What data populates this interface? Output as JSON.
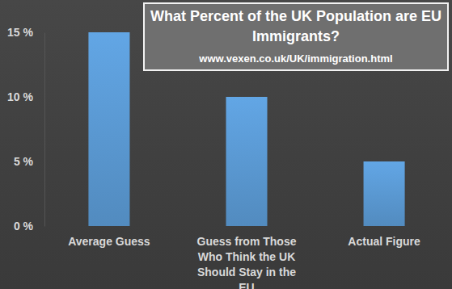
{
  "chart_data": {
    "type": "bar",
    "title": "What Percent of the UK Population are EU Immigrants?",
    "subtitle": "www.vexen.co.uk/UK/immigration.html",
    "categories": [
      "Average Guess",
      "Guess from Those Who Think the UK Should Stay in the EU",
      "Actual Figure"
    ],
    "values": [
      15,
      10,
      5
    ],
    "color": "#5b9bd5",
    "ylim": [
      0,
      15
    ],
    "yticks": [
      {
        "value": 0,
        "label": "0 %"
      },
      {
        "value": 5,
        "label": "5 %"
      },
      {
        "value": 10,
        "label": "10 %"
      },
      {
        "value": 15,
        "label": "15 %"
      }
    ],
    "grid": false
  }
}
